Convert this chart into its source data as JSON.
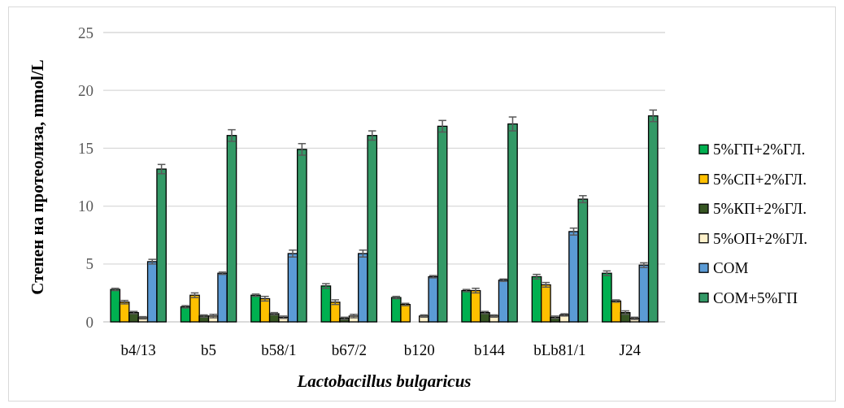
{
  "chart_data": {
    "type": "bar",
    "ylabel": "Степен на протеолиза, mmol/L",
    "xlabel": "Lactobacillus bulgaricus",
    "categories": [
      "b4/13",
      "b5",
      "b58/1",
      "b67/2",
      "b120",
      "b144",
      "bLb81/1",
      "J24"
    ],
    "series": [
      {
        "name": "5%ГП+2%ГЛ.",
        "color": "#00b050",
        "values": [
          2.8,
          1.3,
          2.3,
          3.1,
          2.1,
          2.7,
          3.9,
          4.2
        ],
        "errors": [
          0.1,
          0.1,
          0.1,
          0.2,
          0.1,
          0.1,
          0.2,
          0.2
        ]
      },
      {
        "name": "5%СП+2%ГЛ.",
        "color": "#ffc000",
        "values": [
          1.7,
          2.3,
          2.0,
          1.7,
          1.5,
          2.7,
          3.2,
          1.8
        ],
        "errors": [
          0.15,
          0.2,
          0.2,
          0.2,
          0.1,
          0.2,
          0.2,
          0.1
        ]
      },
      {
        "name": "5%КП+2%ГЛ.",
        "color": "#375623",
        "values": [
          0.8,
          0.5,
          0.7,
          0.3,
          0,
          0.8,
          0.4,
          0.8
        ],
        "errors": [
          0.1,
          0.1,
          0.1,
          0.1,
          null,
          0.1,
          0.1,
          0.15
        ]
      },
      {
        "name": "5%ОП+2%ГЛ.",
        "color": "#fff2cc",
        "values": [
          0.35,
          0.5,
          0.4,
          0.5,
          0.5,
          0.5,
          0.6,
          0.3
        ],
        "errors": [
          0.1,
          0.15,
          0.1,
          0.15,
          0.1,
          0.1,
          0.1,
          0.1
        ]
      },
      {
        "name": "СОМ",
        "color": "#5b9bd5",
        "values": [
          5.2,
          4.2,
          5.9,
          5.9,
          3.9,
          3.6,
          7.8,
          4.9
        ],
        "errors": [
          0.2,
          0.1,
          0.3,
          0.3,
          0.1,
          0.1,
          0.3,
          0.2
        ]
      },
      {
        "name": "СОМ+5%ГП",
        "color": "#339966",
        "values": [
          13.2,
          16.1,
          14.9,
          16.1,
          16.9,
          17.1,
          10.6,
          17.8
        ],
        "errors": [
          0.4,
          0.5,
          0.5,
          0.4,
          0.5,
          0.6,
          0.3,
          0.5
        ]
      }
    ],
    "ylim": [
      0,
      25
    ],
    "yticks": [
      0,
      5,
      10,
      15,
      20,
      25
    ],
    "grid": "y",
    "legend": "right"
  }
}
